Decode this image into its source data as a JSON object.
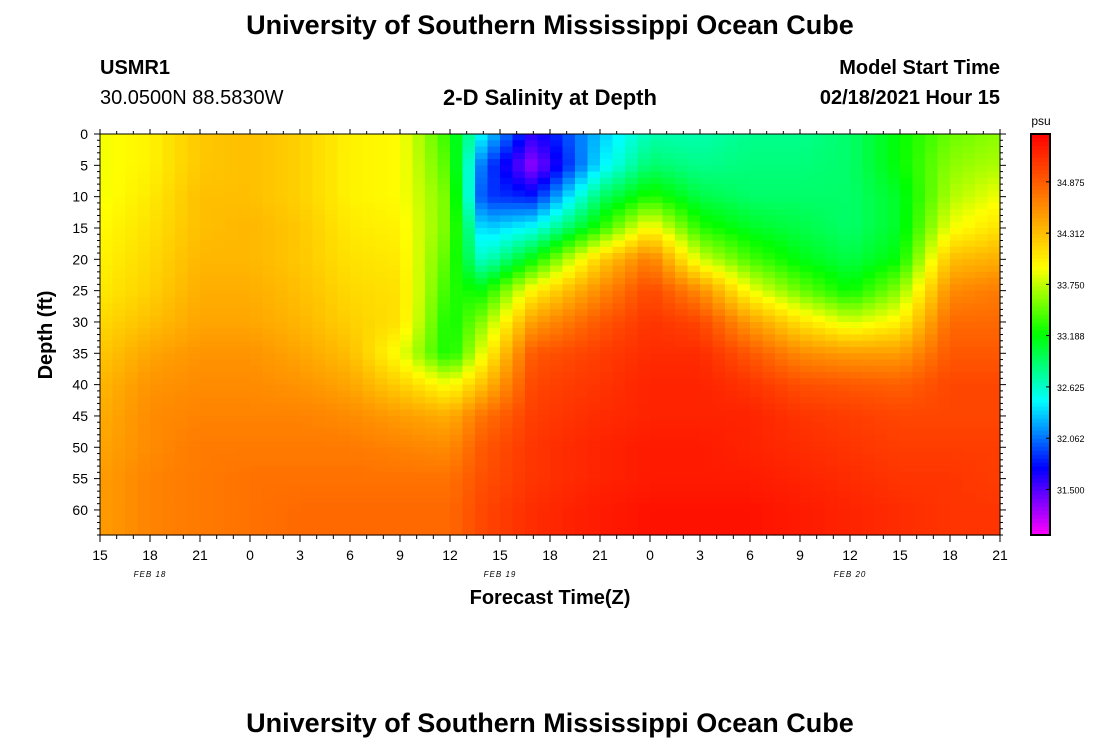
{
  "page": {
    "title_top": "University of Southern Mississippi Ocean Cube",
    "title_bottom": "University of Southern Mississippi Ocean Cube",
    "station_id": "USMR1",
    "station_coords": "30.0500N 88.5830W",
    "plot_title": "2-D Salinity at Depth",
    "model_label": "Model Start Time",
    "model_time": "02/18/2021 Hour 15"
  },
  "colors": {
    "scale": [
      "#ff00ff",
      "#7f00ff",
      "#0000ff",
      "#0080ff",
      "#00ffff",
      "#00ff80",
      "#00ff00",
      "#80ff00",
      "#ffff00",
      "#ffbf00",
      "#ff8000",
      "#ff4000",
      "#ff0000"
    ]
  },
  "chart_data": {
    "type": "heatmap",
    "title": "2-D Salinity at Depth",
    "xlabel": "Forecast Time(Z)",
    "ylabel": "Depth (ft)",
    "x_hours": [
      0,
      3,
      6,
      9,
      12,
      15,
      18,
      21,
      24,
      27,
      30,
      33,
      36,
      39,
      42,
      45,
      48,
      51,
      54
    ],
    "x_tick_labels": [
      "15",
      "18",
      "21",
      "0",
      "3",
      "6",
      "9",
      "12",
      "15",
      "18",
      "21",
      "0",
      "3",
      "6",
      "9",
      "12",
      "15",
      "18",
      "21"
    ],
    "date_labels": [
      {
        "hour": 3,
        "label": "FEB 18"
      },
      {
        "hour": 24,
        "label": "FEB 19"
      },
      {
        "hour": 45,
        "label": "FEB 20"
      }
    ],
    "y_ticks": [
      0,
      5,
      10,
      15,
      20,
      25,
      30,
      35,
      40,
      45,
      50,
      55,
      60
    ],
    "ylim": [
      0,
      64
    ],
    "xlim": [
      0,
      54
    ],
    "colorbar": {
      "unit": "psu",
      "range": [
        31.0,
        35.4
      ],
      "tick_labels": [
        "34.875",
        "34.312",
        "33.750",
        "33.188",
        "32.625",
        "32.062",
        "31.500"
      ]
    },
    "depths": [
      0,
      5,
      10,
      15,
      20,
      25,
      30,
      35,
      40,
      45,
      50,
      55,
      60,
      64
    ],
    "columns": [
      {
        "hour": 0,
        "values": [
          33.9,
          33.9,
          33.9,
          33.95,
          34.0,
          34.05,
          34.15,
          34.25,
          34.35,
          34.4,
          34.45,
          34.5,
          34.5,
          34.5
        ]
      },
      {
        "hour": 3,
        "values": [
          34.0,
          34.0,
          34.05,
          34.1,
          34.15,
          34.2,
          34.3,
          34.45,
          34.55,
          34.6,
          34.6,
          34.65,
          34.65,
          34.65
        ]
      },
      {
        "hour": 6,
        "values": [
          34.25,
          34.25,
          34.3,
          34.3,
          34.35,
          34.4,
          34.45,
          34.55,
          34.6,
          34.65,
          34.7,
          34.7,
          34.7,
          34.7
        ]
      },
      {
        "hour": 9,
        "values": [
          34.3,
          34.3,
          34.3,
          34.35,
          34.35,
          34.4,
          34.45,
          34.55,
          34.6,
          34.65,
          34.7,
          34.75,
          34.75,
          34.75
        ]
      },
      {
        "hour": 12,
        "values": [
          34.2,
          34.2,
          34.2,
          34.25,
          34.25,
          34.3,
          34.35,
          34.45,
          34.55,
          34.65,
          34.7,
          34.75,
          34.8,
          34.8
        ]
      },
      {
        "hour": 15,
        "values": [
          34.0,
          34.0,
          34.0,
          34.05,
          34.1,
          34.15,
          34.2,
          34.3,
          34.45,
          34.6,
          34.7,
          34.75,
          34.8,
          34.8
        ]
      },
      {
        "hour": 18,
        "values": [
          33.95,
          33.95,
          33.95,
          34.0,
          34.05,
          34.1,
          34.1,
          33.9,
          34.2,
          34.5,
          34.65,
          34.75,
          34.8,
          34.8
        ]
      },
      {
        "hour": 21,
        "values": [
          33.3,
          33.4,
          33.5,
          33.5,
          33.4,
          33.3,
          33.2,
          33.2,
          33.9,
          34.4,
          34.6,
          34.75,
          34.8,
          34.8
        ]
      },
      {
        "hour": 23,
        "values": [
          32.4,
          32.0,
          31.9,
          32.3,
          32.6,
          33.2,
          33.6,
          33.9,
          34.3,
          34.75,
          34.9,
          34.95,
          35.0,
          35.0
        ]
      },
      {
        "hour": 26,
        "values": [
          31.6,
          31.3,
          31.8,
          32.5,
          33.2,
          34.0,
          34.5,
          34.9,
          35.0,
          35.05,
          35.1,
          35.1,
          35.15,
          35.15
        ]
      },
      {
        "hour": 30,
        "values": [
          32.3,
          32.4,
          32.9,
          33.3,
          34.2,
          34.6,
          34.9,
          35.05,
          35.1,
          35.15,
          35.2,
          35.2,
          35.25,
          35.25
        ]
      },
      {
        "hour": 33,
        "values": [
          32.7,
          32.9,
          33.3,
          34.0,
          34.7,
          35.0,
          35.1,
          35.15,
          35.2,
          35.2,
          35.25,
          35.25,
          35.3,
          35.3
        ]
      },
      {
        "hour": 36,
        "values": [
          32.7,
          32.8,
          33.0,
          33.3,
          33.8,
          34.6,
          35.0,
          35.15,
          35.2,
          35.2,
          35.25,
          35.25,
          35.3,
          35.3
        ]
      },
      {
        "hour": 39,
        "values": [
          32.8,
          32.85,
          32.9,
          33.1,
          33.4,
          33.9,
          34.5,
          34.9,
          35.1,
          35.2,
          35.2,
          35.25,
          35.3,
          35.3
        ]
      },
      {
        "hour": 42,
        "values": [
          32.8,
          32.85,
          32.9,
          33.0,
          33.15,
          33.5,
          34.1,
          34.6,
          34.95,
          35.1,
          35.15,
          35.2,
          35.25,
          35.25
        ]
      },
      {
        "hour": 45,
        "values": [
          32.9,
          32.9,
          32.9,
          32.9,
          33.0,
          33.2,
          33.8,
          34.5,
          34.9,
          35.05,
          35.1,
          35.15,
          35.2,
          35.2
        ]
      },
      {
        "hour": 48,
        "values": [
          33.2,
          33.2,
          33.1,
          33.1,
          33.2,
          33.6,
          34.0,
          34.5,
          34.85,
          35.0,
          35.05,
          35.1,
          35.15,
          35.15
        ]
      },
      {
        "hour": 51,
        "values": [
          33.5,
          33.6,
          33.7,
          33.9,
          34.3,
          34.6,
          34.8,
          34.9,
          35.0,
          35.0,
          35.05,
          35.1,
          35.1,
          35.1
        ]
      },
      {
        "hour": 54,
        "values": [
          33.6,
          33.7,
          33.9,
          34.1,
          34.4,
          34.7,
          34.8,
          34.9,
          35.0,
          35.0,
          35.05,
          35.05,
          35.1,
          35.1
        ]
      }
    ]
  }
}
